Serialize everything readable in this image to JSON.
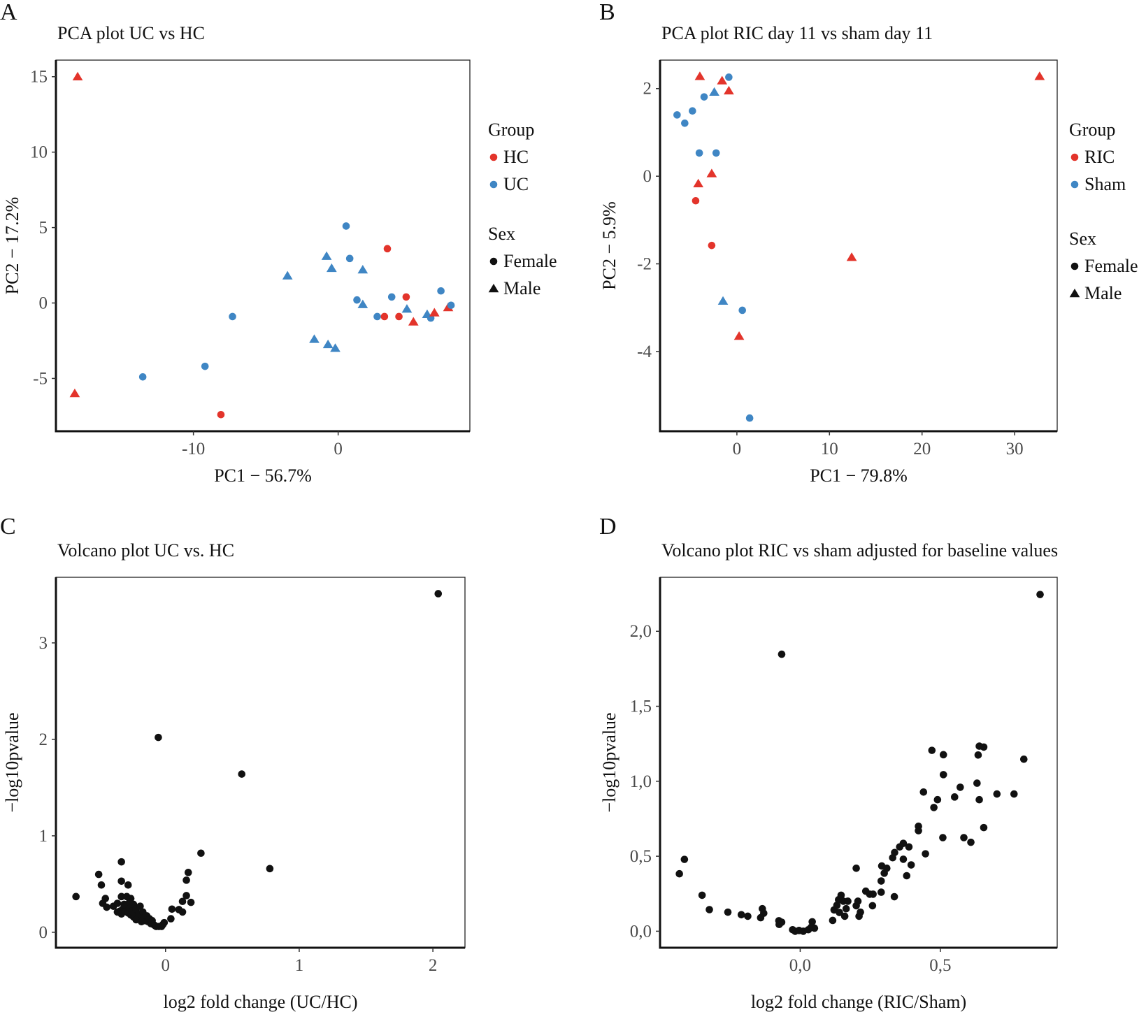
{
  "colors": {
    "red": "#e3342b",
    "blue": "#3f86c4",
    "black": "#111111"
  },
  "chart_data": [
    {
      "panel_label": "A",
      "type": "scatter",
      "title": "PCA plot UC vs HC",
      "xlabel": "PC1 − 56.7%",
      "ylabel": "PC2 − 17.2%",
      "xlim": [
        -19.5,
        9.1
      ],
      "ylim": [
        -8.5,
        16.1
      ],
      "xticks": [
        -10,
        0
      ],
      "xtick_labels": [
        "-10",
        "0"
      ],
      "yticks": [
        -5,
        0,
        5,
        10,
        15
      ],
      "ytick_labels": [
        "-5",
        "0",
        "5",
        "10",
        "15"
      ],
      "legend": {
        "placement": "right",
        "group_title": "Group",
        "groups": [
          {
            "name": "HC",
            "color": "#e3342b"
          },
          {
            "name": "UC",
            "color": "#3f86c4"
          }
        ],
        "sex_title": "Sex",
        "sexes": [
          {
            "name": "Female",
            "shape": "circle"
          },
          {
            "name": "Male",
            "shape": "triangle"
          }
        ]
      },
      "points": [
        {
          "x": -18.0,
          "y": 15.0,
          "group": "HC",
          "sex": "Male"
        },
        {
          "x": -18.2,
          "y": -6.0,
          "group": "HC",
          "sex": "Male"
        },
        {
          "x": -8.1,
          "y": -7.4,
          "group": "HC",
          "sex": "Female"
        },
        {
          "x": -13.5,
          "y": -4.9,
          "group": "UC",
          "sex": "Female"
        },
        {
          "x": -9.2,
          "y": -4.2,
          "group": "UC",
          "sex": "Female"
        },
        {
          "x": -7.3,
          "y": -0.9,
          "group": "UC",
          "sex": "Female"
        },
        {
          "x": -3.5,
          "y": 1.8,
          "group": "UC",
          "sex": "Male"
        },
        {
          "x": -0.8,
          "y": 3.1,
          "group": "UC",
          "sex": "Male"
        },
        {
          "x": -0.45,
          "y": 2.3,
          "group": "UC",
          "sex": "Male"
        },
        {
          "x": 1.7,
          "y": 2.2,
          "group": "UC",
          "sex": "Male"
        },
        {
          "x": 0.55,
          "y": 5.1,
          "group": "UC",
          "sex": "Female"
        },
        {
          "x": 0.8,
          "y": 2.95,
          "group": "UC",
          "sex": "Female"
        },
        {
          "x": 3.4,
          "y": 3.6,
          "group": "HC",
          "sex": "Female"
        },
        {
          "x": 1.3,
          "y": 0.2,
          "group": "UC",
          "sex": "Female"
        },
        {
          "x": 1.7,
          "y": -0.1,
          "group": "UC",
          "sex": "Male"
        },
        {
          "x": 3.7,
          "y": 0.4,
          "group": "UC",
          "sex": "Female"
        },
        {
          "x": 4.7,
          "y": 0.4,
          "group": "HC",
          "sex": "Female"
        },
        {
          "x": 2.7,
          "y": -0.9,
          "group": "UC",
          "sex": "Female"
        },
        {
          "x": 3.2,
          "y": -0.9,
          "group": "HC",
          "sex": "Female"
        },
        {
          "x": 4.2,
          "y": -0.9,
          "group": "HC",
          "sex": "Female"
        },
        {
          "x": 4.75,
          "y": -0.4,
          "group": "UC",
          "sex": "Male"
        },
        {
          "x": 5.2,
          "y": -1.25,
          "group": "HC",
          "sex": "Male"
        },
        {
          "x": 6.15,
          "y": -0.75,
          "group": "UC",
          "sex": "Male"
        },
        {
          "x": 6.4,
          "y": -1.0,
          "group": "UC",
          "sex": "Female"
        },
        {
          "x": 6.65,
          "y": -0.65,
          "group": "HC",
          "sex": "Male"
        },
        {
          "x": 7.1,
          "y": 0.8,
          "group": "UC",
          "sex": "Female"
        },
        {
          "x": 7.6,
          "y": -0.3,
          "group": "HC",
          "sex": "Male"
        },
        {
          "x": 7.8,
          "y": -0.15,
          "group": "UC",
          "sex": "Female"
        },
        {
          "x": -1.65,
          "y": -2.4,
          "group": "UC",
          "sex": "Male"
        },
        {
          "x": -0.7,
          "y": -2.75,
          "group": "UC",
          "sex": "Male"
        },
        {
          "x": -0.2,
          "y": -3.0,
          "group": "UC",
          "sex": "Male"
        }
      ]
    },
    {
      "panel_label": "B",
      "type": "scatter",
      "title": "PCA plot RIC day 11 vs sham day 11",
      "xlabel": "PC1 − 79.8%",
      "ylabel": "PC2 − 5.9%",
      "xlim": [
        -8.3,
        34.6
      ],
      "ylim": [
        -5.82,
        2.65
      ],
      "xticks": [
        0,
        10,
        20,
        30
      ],
      "xtick_labels": [
        "0",
        "10",
        "20",
        "30"
      ],
      "yticks": [
        -4,
        -2,
        0,
        2
      ],
      "ytick_labels": [
        "-4",
        "-2",
        "0",
        "2"
      ],
      "legend": {
        "placement": "right",
        "group_title": "Group",
        "groups": [
          {
            "name": "RIC",
            "color": "#e3342b"
          },
          {
            "name": "Sham",
            "color": "#3f86c4"
          }
        ],
        "sex_title": "Sex",
        "sexes": [
          {
            "name": "Female",
            "shape": "circle"
          },
          {
            "name": "Male",
            "shape": "triangle"
          }
        ]
      },
      "points": [
        {
          "x": -4.0,
          "y": 2.28,
          "group": "RIC",
          "sex": "Male"
        },
        {
          "x": -1.6,
          "y": 2.18,
          "group": "RIC",
          "sex": "Male"
        },
        {
          "x": -0.87,
          "y": 2.26,
          "group": "Sham",
          "sex": "Female"
        },
        {
          "x": -0.87,
          "y": 1.95,
          "group": "RIC",
          "sex": "Male"
        },
        {
          "x": -2.44,
          "y": 1.92,
          "group": "Sham",
          "sex": "Male"
        },
        {
          "x": -3.54,
          "y": 1.81,
          "group": "Sham",
          "sex": "Female"
        },
        {
          "x": -4.8,
          "y": 1.49,
          "group": "Sham",
          "sex": "Female"
        },
        {
          "x": -6.46,
          "y": 1.4,
          "group": "Sham",
          "sex": "Female"
        },
        {
          "x": -5.63,
          "y": 1.21,
          "group": "Sham",
          "sex": "Female"
        },
        {
          "x": -4.06,
          "y": 0.53,
          "group": "Sham",
          "sex": "Female"
        },
        {
          "x": -2.24,
          "y": 0.53,
          "group": "Sham",
          "sex": "Female"
        },
        {
          "x": -2.72,
          "y": 0.06,
          "group": "RIC",
          "sex": "Male"
        },
        {
          "x": -4.17,
          "y": -0.17,
          "group": "RIC",
          "sex": "Male"
        },
        {
          "x": -4.45,
          "y": -0.56,
          "group": "RIC",
          "sex": "Female"
        },
        {
          "x": -2.72,
          "y": -1.58,
          "group": "RIC",
          "sex": "Female"
        },
        {
          "x": 12.4,
          "y": -1.85,
          "group": "RIC",
          "sex": "Male"
        },
        {
          "x": -1.5,
          "y": -2.85,
          "group": "Sham",
          "sex": "Male"
        },
        {
          "x": 0.59,
          "y": -3.06,
          "group": "Sham",
          "sex": "Female"
        },
        {
          "x": 0.24,
          "y": -3.65,
          "group": "RIC",
          "sex": "Male"
        },
        {
          "x": 1.38,
          "y": -5.52,
          "group": "Sham",
          "sex": "Female"
        },
        {
          "x": 32.7,
          "y": 2.28,
          "group": "RIC",
          "sex": "Male"
        }
      ]
    },
    {
      "panel_label": "C",
      "type": "scatter",
      "title": "Volcano plot UC vs. HC",
      "xlabel": "log2 fold change (UC/HC)",
      "ylabel": "−log10pvalue",
      "xlim": [
        -0.82,
        2.24
      ],
      "ylim": [
        -0.16,
        3.68
      ],
      "xticks": [
        0,
        1,
        2
      ],
      "xtick_labels": [
        "0",
        "1",
        "2"
      ],
      "yticks": [
        0,
        1,
        2,
        3
      ],
      "ytick_labels": [
        "0",
        "1",
        "2",
        "3"
      ],
      "points": [
        [
          2.04,
          3.51
        ],
        [
          -0.054,
          2.02
        ],
        [
          0.57,
          1.64
        ],
        [
          0.265,
          0.82
        ],
        [
          0.78,
          0.66
        ],
        [
          -0.67,
          0.37
        ],
        [
          -0.5,
          0.6
        ],
        [
          -0.48,
          0.49
        ],
        [
          -0.33,
          0.73
        ],
        [
          -0.33,
          0.53
        ],
        [
          -0.28,
          0.49
        ],
        [
          -0.45,
          0.35
        ],
        [
          -0.47,
          0.3
        ],
        [
          -0.44,
          0.26
        ],
        [
          -0.39,
          0.27
        ],
        [
          -0.36,
          0.3
        ],
        [
          -0.33,
          0.37
        ],
        [
          -0.29,
          0.37
        ],
        [
          -0.26,
          0.35
        ],
        [
          0.17,
          0.62
        ],
        [
          0.156,
          0.54
        ],
        [
          0.156,
          0.38
        ],
        [
          0.127,
          0.32
        ],
        [
          0.19,
          0.31
        ],
        [
          0.048,
          0.24
        ],
        [
          0.1,
          0.235
        ],
        [
          0.127,
          0.21
        ],
        [
          -0.01,
          0.1
        ],
        [
          0.04,
          0.14
        ],
        [
          -0.34,
          0.22
        ],
        [
          -0.32,
          0.24
        ],
        [
          -0.3,
          0.22
        ],
        [
          -0.29,
          0.27
        ],
        [
          -0.28,
          0.2
        ],
        [
          -0.27,
          0.25
        ],
        [
          -0.26,
          0.18
        ],
        [
          -0.25,
          0.22
        ],
        [
          -0.24,
          0.29
        ],
        [
          -0.24,
          0.16
        ],
        [
          -0.23,
          0.2
        ],
        [
          -0.22,
          0.24
        ],
        [
          -0.21,
          0.15
        ],
        [
          -0.2,
          0.19
        ],
        [
          -0.19,
          0.27
        ],
        [
          -0.19,
          0.14
        ],
        [
          -0.18,
          0.17
        ],
        [
          -0.17,
          0.21
        ],
        [
          -0.16,
          0.15
        ],
        [
          -0.15,
          0.12
        ],
        [
          -0.14,
          0.17
        ],
        [
          -0.13,
          0.11
        ],
        [
          -0.12,
          0.14
        ],
        [
          -0.11,
          0.09
        ],
        [
          -0.1,
          0.12
        ],
        [
          -0.09,
          0.08
        ],
        [
          -0.08,
          0.07
        ],
        [
          -0.07,
          0.06
        ],
        [
          -0.05,
          0.06
        ],
        [
          -0.03,
          0.06
        ],
        [
          -0.02,
          0.08
        ],
        [
          -0.31,
          0.29
        ],
        [
          -0.33,
          0.19
        ],
        [
          -0.27,
          0.31
        ],
        [
          -0.22,
          0.13
        ],
        [
          -0.18,
          0.11
        ],
        [
          -0.36,
          0.21
        ]
      ]
    },
    {
      "panel_label": "D",
      "type": "scatter",
      "title": "Volcano plot RIC vs sham adjusted for baseline values",
      "xlabel": "log2 fold change (RIC/Sham)",
      "ylabel": "−log10pvalue",
      "xlim": [
        -0.5,
        0.917
      ],
      "ylim": [
        -0.11,
        2.36
      ],
      "xticks": [
        0,
        0.5
      ],
      "xtick_labels": [
        "0,0",
        "0,5"
      ],
      "yticks": [
        0,
        0.5,
        1.0,
        1.5,
        2.0
      ],
      "ytick_labels": [
        "0,0",
        "0,5",
        "1,0",
        "1,5",
        "2,0"
      ],
      "points": [
        [
          0.856,
          2.245
        ],
        [
          -0.066,
          1.847
        ],
        [
          -0.431,
          0.383
        ],
        [
          -0.413,
          0.479
        ],
        [
          -0.35,
          0.24
        ],
        [
          -0.324,
          0.144
        ],
        [
          -0.258,
          0.127
        ],
        [
          -0.21,
          0.11
        ],
        [
          -0.187,
          0.1
        ],
        [
          -0.135,
          0.15
        ],
        [
          -0.13,
          0.12
        ],
        [
          -0.141,
          0.09
        ],
        [
          -0.076,
          0.07
        ],
        [
          -0.066,
          0.06
        ],
        [
          -0.075,
          0.045
        ],
        [
          -0.027,
          0.01
        ],
        [
          -0.018,
          0.0
        ],
        [
          -0.004,
          0.005
        ],
        [
          0.011,
          0.0
        ],
        [
          0.029,
          0.01
        ],
        [
          0.043,
          0.063
        ],
        [
          0.051,
          0.02
        ],
        [
          0.039,
          0.026
        ],
        [
          0.116,
          0.072
        ],
        [
          0.121,
          0.142
        ],
        [
          0.131,
          0.173
        ],
        [
          0.137,
          0.21
        ],
        [
          0.146,
          0.24
        ],
        [
          0.154,
          0.2
        ],
        [
          0.159,
          0.1
        ],
        [
          0.164,
          0.15
        ],
        [
          0.17,
          0.2
        ],
        [
          0.14,
          0.125
        ],
        [
          0.2,
          0.17
        ],
        [
          0.206,
          0.2
        ],
        [
          0.21,
          0.1
        ],
        [
          0.215,
          0.127
        ],
        [
          0.2,
          0.42
        ],
        [
          0.234,
          0.267
        ],
        [
          0.248,
          0.247
        ],
        [
          0.26,
          0.247
        ],
        [
          0.258,
          0.17
        ],
        [
          0.289,
          0.26
        ],
        [
          0.289,
          0.335
        ],
        [
          0.3,
          0.387
        ],
        [
          0.291,
          0.435
        ],
        [
          0.309,
          0.42
        ],
        [
          0.336,
          0.23
        ],
        [
          0.33,
          0.49
        ],
        [
          0.337,
          0.525
        ],
        [
          0.355,
          0.562
        ],
        [
          0.368,
          0.586
        ],
        [
          0.368,
          0.48
        ],
        [
          0.388,
          0.562
        ],
        [
          0.38,
          0.37
        ],
        [
          0.396,
          0.442
        ],
        [
          0.422,
          0.7
        ],
        [
          0.422,
          0.67
        ],
        [
          0.447,
          0.516
        ],
        [
          0.44,
          0.928
        ],
        [
          0.477,
          0.825
        ],
        [
          0.49,
          0.877
        ],
        [
          0.47,
          1.206
        ],
        [
          0.511,
          1.177
        ],
        [
          0.511,
          1.044
        ],
        [
          0.509,
          0.624
        ],
        [
          0.551,
          0.895
        ],
        [
          0.571,
          0.96
        ],
        [
          0.584,
          0.624
        ],
        [
          0.609,
          0.593
        ],
        [
          0.631,
          0.987
        ],
        [
          0.635,
          1.175
        ],
        [
          0.639,
          1.234
        ],
        [
          0.655,
          1.228
        ],
        [
          0.639,
          0.877
        ],
        [
          0.655,
          0.691
        ],
        [
          0.702,
          0.915
        ],
        [
          0.763,
          0.915
        ],
        [
          0.798,
          1.147
        ]
      ]
    }
  ]
}
